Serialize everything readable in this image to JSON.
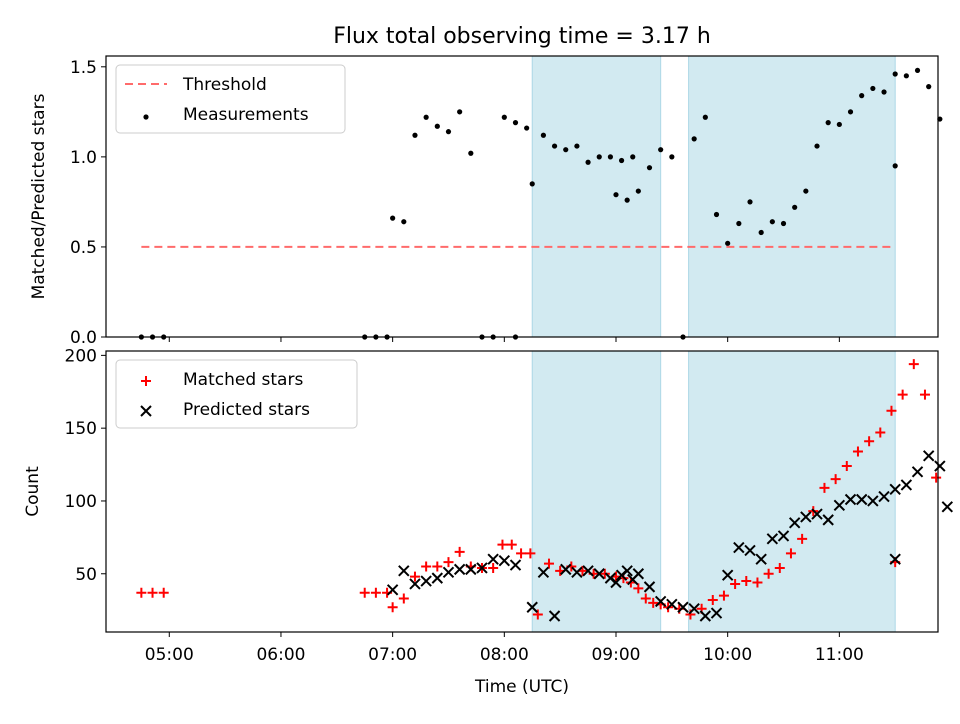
{
  "title": "Flux total observing time = 3.17 h",
  "colors": {
    "threshold": "#ff6b6b",
    "shade": "#add8e6",
    "matched": "#ff0000",
    "predicted": "#000000",
    "measurement": "#000000"
  },
  "chart_data": [
    {
      "type": "scatter",
      "ylabel": "Matched/Predicted stars",
      "ylim": [
        0,
        1.56
      ],
      "xlim": [
        "04:26",
        "11:53"
      ],
      "yticks": [
        "0.0",
        "0.5",
        "1.0",
        "1.5"
      ],
      "legend": {
        "placement": "top-left",
        "entries": [
          "Threshold",
          "Measurements"
        ]
      },
      "shaded_ranges": [
        [
          "08:15",
          "09:24"
        ],
        [
          "09:39",
          "11:30"
        ]
      ],
      "threshold": {
        "name": "Threshold",
        "y": 0.5,
        "x_range": [
          "04:45",
          "11:30"
        ]
      },
      "series": [
        {
          "name": "Measurements",
          "points": [
            [
              "04:45",
              0.0
            ],
            [
              "04:51",
              0.0
            ],
            [
              "04:57",
              0.0
            ],
            [
              "06:45",
              0.0
            ],
            [
              "06:51",
              0.0
            ],
            [
              "06:57",
              0.0
            ],
            [
              "07:00",
              0.66
            ],
            [
              "07:06",
              0.64
            ],
            [
              "07:12",
              1.12
            ],
            [
              "07:18",
              1.22
            ],
            [
              "07:24",
              1.17
            ],
            [
              "07:30",
              1.14
            ],
            [
              "07:36",
              1.25
            ],
            [
              "07:42",
              1.02
            ],
            [
              "07:48",
              0.0
            ],
            [
              "07:54",
              0.0
            ],
            [
              "08:00",
              1.22
            ],
            [
              "08:06",
              1.19
            ],
            [
              "08:12",
              1.16
            ],
            [
              "08:06",
              0.0
            ],
            [
              "08:15",
              0.85
            ],
            [
              "08:21",
              1.12
            ],
            [
              "08:27",
              1.06
            ],
            [
              "08:33",
              1.04
            ],
            [
              "08:39",
              1.06
            ],
            [
              "08:45",
              0.97
            ],
            [
              "08:51",
              1.0
            ],
            [
              "08:57",
              1.0
            ],
            [
              "09:03",
              0.98
            ],
            [
              "09:09",
              1.0
            ],
            [
              "09:00",
              0.79
            ],
            [
              "09:06",
              0.76
            ],
            [
              "09:12",
              0.81
            ],
            [
              "09:18",
              0.94
            ],
            [
              "09:24",
              1.04
            ],
            [
              "09:30",
              1.0
            ],
            [
              "09:36",
              0.0
            ],
            [
              "09:42",
              1.1
            ],
            [
              "09:48",
              1.22
            ],
            [
              "09:54",
              0.68
            ],
            [
              "10:00",
              0.52
            ],
            [
              "10:06",
              0.63
            ],
            [
              "10:12",
              0.75
            ],
            [
              "10:18",
              0.58
            ],
            [
              "10:24",
              0.64
            ],
            [
              "10:30",
              0.63
            ],
            [
              "10:36",
              0.72
            ],
            [
              "10:42",
              0.81
            ],
            [
              "10:48",
              1.06
            ],
            [
              "10:54",
              1.19
            ],
            [
              "11:00",
              1.18
            ],
            [
              "11:06",
              1.25
            ],
            [
              "11:12",
              1.34
            ],
            [
              "11:18",
              1.38
            ],
            [
              "11:24",
              1.36
            ],
            [
              "11:30",
              1.46
            ],
            [
              "11:36",
              1.45
            ],
            [
              "11:42",
              1.48
            ],
            [
              "11:48",
              1.39
            ],
            [
              "11:54",
              1.21
            ],
            [
              "11:30",
              0.95
            ]
          ]
        }
      ]
    },
    {
      "type": "scatter",
      "xlabel": "Time (UTC)",
      "ylabel": "Count",
      "ylim": [
        10,
        203
      ],
      "xlim": [
        "04:26",
        "11:53"
      ],
      "xticks": [
        "05:00",
        "06:00",
        "07:00",
        "08:00",
        "09:00",
        "10:00",
        "11:00"
      ],
      "yticks": [
        "50",
        "100",
        "150",
        "200"
      ],
      "legend": {
        "placement": "top-left",
        "entries": [
          "Matched stars",
          "Predicted stars"
        ]
      },
      "shaded_ranges": [
        [
          "08:15",
          "09:24"
        ],
        [
          "09:39",
          "11:30"
        ]
      ],
      "series": [
        {
          "name": "Matched stars",
          "points": [
            [
              "04:45",
              37
            ],
            [
              "04:51",
              37
            ],
            [
              "04:57",
              37
            ],
            [
              "06:45",
              37
            ],
            [
              "06:51",
              37
            ],
            [
              "06:57",
              37
            ],
            [
              "07:00",
              27
            ],
            [
              "07:06",
              33
            ],
            [
              "07:12",
              48
            ],
            [
              "07:18",
              55
            ],
            [
              "07:24",
              55
            ],
            [
              "07:30",
              58
            ],
            [
              "07:36",
              65
            ],
            [
              "07:42",
              55
            ],
            [
              "07:48",
              54
            ],
            [
              "07:54",
              54
            ],
            [
              "07:59",
              70
            ],
            [
              "08:04",
              70
            ],
            [
              "08:09",
              64
            ],
            [
              "08:14",
              64
            ],
            [
              "08:18",
              22
            ],
            [
              "08:24",
              57
            ],
            [
              "08:30",
              52
            ],
            [
              "08:36",
              55
            ],
            [
              "08:42",
              52
            ],
            [
              "08:48",
              50
            ],
            [
              "08:54",
              50
            ],
            [
              "09:00",
              48
            ],
            [
              "09:04",
              47
            ],
            [
              "09:08",
              44
            ],
            [
              "09:12",
              40
            ],
            [
              "09:16",
              33
            ],
            [
              "09:20",
              30
            ],
            [
              "09:24",
              29
            ],
            [
              "09:28",
              27
            ],
            [
              "09:34",
              26
            ],
            [
              "09:40",
              22
            ],
            [
              "09:46",
              26
            ],
            [
              "09:52",
              32
            ],
            [
              "09:58",
              35
            ],
            [
              "10:04",
              43
            ],
            [
              "10:10",
              45
            ],
            [
              "10:16",
              44
            ],
            [
              "10:22",
              50
            ],
            [
              "10:28",
              54
            ],
            [
              "10:34",
              64
            ],
            [
              "10:40",
              74
            ],
            [
              "10:46",
              93
            ],
            [
              "10:52",
              109
            ],
            [
              "10:58",
              115
            ],
            [
              "11:04",
              124
            ],
            [
              "11:10",
              134
            ],
            [
              "11:16",
              141
            ],
            [
              "11:22",
              147
            ],
            [
              "11:28",
              162
            ],
            [
              "11:34",
              173
            ],
            [
              "11:40",
              194
            ],
            [
              "11:46",
              173
            ],
            [
              "11:52",
              116
            ],
            [
              "11:30",
              58
            ]
          ]
        },
        {
          "name": "Predicted stars",
          "points": [
            [
              "07:00",
              39
            ],
            [
              "07:06",
              52
            ],
            [
              "07:12",
              43
            ],
            [
              "07:18",
              45
            ],
            [
              "07:24",
              47
            ],
            [
              "07:30",
              51
            ],
            [
              "07:36",
              53
            ],
            [
              "07:42",
              53
            ],
            [
              "07:48",
              54
            ],
            [
              "07:54",
              60
            ],
            [
              "08:00",
              59
            ],
            [
              "08:06",
              56
            ],
            [
              "08:15",
              27
            ],
            [
              "08:21",
              51
            ],
            [
              "08:27",
              21
            ],
            [
              "08:33",
              53
            ],
            [
              "08:39",
              51
            ],
            [
              "08:45",
              52
            ],
            [
              "08:51",
              50
            ],
            [
              "08:57",
              47
            ],
            [
              "09:03",
              49
            ],
            [
              "09:09",
              46
            ],
            [
              "09:00",
              44
            ],
            [
              "09:06",
              52
            ],
            [
              "09:12",
              50
            ],
            [
              "09:18",
              41
            ],
            [
              "09:24",
              31
            ],
            [
              "09:30",
              29
            ],
            [
              "09:36",
              27
            ],
            [
              "09:42",
              26
            ],
            [
              "09:48",
              21
            ],
            [
              "09:54",
              23
            ],
            [
              "10:00",
              49
            ],
            [
              "10:06",
              68
            ],
            [
              "10:12",
              66
            ],
            [
              "10:18",
              60
            ],
            [
              "10:24",
              74
            ],
            [
              "10:30",
              76
            ],
            [
              "10:36",
              85
            ],
            [
              "10:42",
              89
            ],
            [
              "10:48",
              91
            ],
            [
              "10:54",
              87
            ],
            [
              "11:00",
              97
            ],
            [
              "11:06",
              101
            ],
            [
              "11:12",
              101
            ],
            [
              "11:18",
              100
            ],
            [
              "11:24",
              103
            ],
            [
              "11:30",
              108
            ],
            [
              "11:36",
              111
            ],
            [
              "11:42",
              120
            ],
            [
              "11:48",
              131
            ],
            [
              "11:54",
              124
            ],
            [
              "11:58",
              96
            ],
            [
              "11:30",
              60
            ]
          ]
        }
      ]
    }
  ]
}
